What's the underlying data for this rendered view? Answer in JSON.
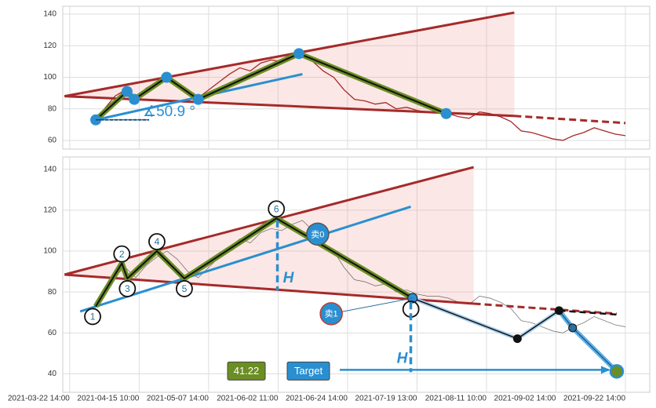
{
  "chart_data": [
    {
      "type": "line",
      "xlim": [
        -2,
        167
      ],
      "xticks": [
        0,
        20,
        40,
        60,
        80,
        100,
        120,
        140,
        160
      ],
      "ylim": [
        54.5,
        145
      ],
      "yticks": [
        60,
        80,
        100,
        120,
        140
      ],
      "grid": true,
      "series": [
        {
          "color": "#a52a2a",
          "x": [
            7,
            10,
            13,
            16,
            19,
            22,
            25,
            28,
            31,
            34,
            37,
            40,
            43,
            46,
            49,
            52,
            55,
            58,
            61,
            64,
            67,
            70,
            73,
            76,
            79,
            82,
            85,
            88,
            91,
            94,
            97,
            100,
            103,
            106,
            109,
            112,
            115,
            118,
            121,
            124,
            127,
            130,
            133,
            136,
            139,
            142,
            145,
            148,
            151,
            154,
            157,
            160
          ],
          "values": [
            73,
            80,
            88,
            92,
            87,
            93,
            97,
            100,
            96,
            90,
            87,
            92,
            97,
            102,
            106,
            104,
            109,
            111,
            110,
            113,
            115,
            110,
            104,
            100,
            92,
            86,
            85,
            83,
            84,
            80,
            81,
            79,
            78,
            78,
            77,
            75,
            74,
            78,
            77,
            75,
            72,
            66,
            65,
            63,
            61,
            60,
            63,
            65,
            68,
            66,
            64,
            63
          ]
        }
      ],
      "upper_line": {
        "x": [
          -1.5,
          128
        ],
        "values": [
          88,
          141
        ]
      },
      "lower_line": {
        "x": [
          -1.5,
          128
        ],
        "values": [
          88,
          75.5
        ]
      },
      "lower_line_projection": {
        "x": [
          128,
          160
        ],
        "values": [
          75.5,
          71
        ]
      },
      "zigzag": {
        "x": [
          7.5,
          16.5,
          18.6,
          27.9,
          37,
          66,
          108.4
        ],
        "values": [
          73,
          91,
          86,
          100,
          86,
          115,
          77
        ]
      },
      "trend": {
        "x": [
          7.5,
          67
        ],
        "values": [
          73,
          102
        ]
      },
      "angle_label": "∡50.9 °"
    },
    {
      "type": "line",
      "xlim": [
        -2,
        167
      ],
      "xticks": [
        {
          "value": 0,
          "label": "2021-03-22 14:00"
        },
        {
          "value": 20,
          "label": "2021-04-15 10:00"
        },
        {
          "value": 40,
          "label": "2021-05-07 14:00"
        },
        {
          "value": 60,
          "label": "2021-06-02 11:00"
        },
        {
          "value": 80,
          "label": "2021-06-24 14:00"
        },
        {
          "value": 100,
          "label": "2021-07-19 13:00"
        },
        {
          "value": 120,
          "label": "2021-08-11 10:00"
        },
        {
          "value": 140,
          "label": "2021-09-02 14:00"
        },
        {
          "value": 160,
          "label": "2021-09-22 14:00"
        }
      ],
      "ylim": [
        31,
        146
      ],
      "yticks": [
        40,
        60,
        80,
        100,
        120,
        140
      ],
      "grid": true,
      "upper_line": {
        "x": [
          -1.5,
          116.3
        ],
        "values": [
          88.5,
          141
        ]
      },
      "lower_line": {
        "x": [
          -1.5,
          116.3
        ],
        "values": [
          88.5,
          74.3
        ]
      },
      "lower_line_projection": {
        "x": [
          116.3,
          157.5
        ],
        "values": [
          74.3,
          69.4
        ]
      },
      "zigzag": {
        "x": [
          7.5,
          15,
          16.6,
          25.1,
          33,
          59.5,
          98.7
        ],
        "values": [
          73,
          94,
          86.6,
          100,
          86.6,
          116,
          77
        ]
      },
      "point_labels": [
        "1",
        "2",
        "3",
        "4",
        "5",
        "6"
      ],
      "trend": {
        "x": [
          3,
          98.2
        ],
        "values": [
          70.5,
          121.7
        ]
      },
      "height_markers": [
        {
          "x": 59.8,
          "values": [
            115,
            80.8
          ],
          "label": "H"
        },
        {
          "x": 98.2,
          "values": [
            75,
            40.8
          ],
          "label": "H"
        }
      ],
      "sell_signals": [
        {
          "label": "卖0",
          "x": 71.4,
          "value": 108.3
        },
        {
          "label": "卖1",
          "x": 75.3,
          "value": 69.4
        }
      ],
      "projection": {
        "x": [
          98.7,
          128.9,
          140.9
        ],
        "values": [
          77,
          57.2,
          70.9
        ]
      },
      "dashed_projection": {
        "x": [
          140.9,
          157.5
        ],
        "values": [
          70.9,
          69
        ]
      },
      "target_path": {
        "x": [
          140.9,
          144.8,
          157.5
        ],
        "values": [
          70.9,
          62.5,
          41.22
        ],
        "value_labels": [
          null,
          null,
          "41.22"
        ]
      },
      "target_label": "Target"
    }
  ]
}
